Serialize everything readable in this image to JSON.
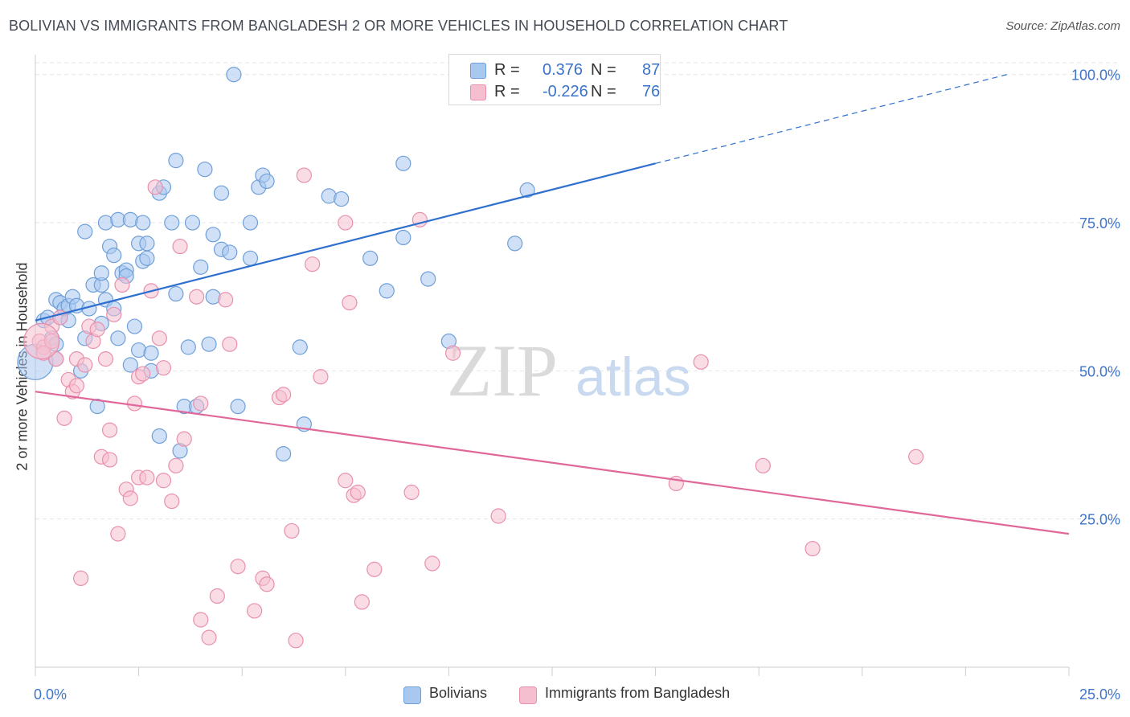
{
  "title": "BOLIVIAN VS IMMIGRANTS FROM BANGLADESH 2 OR MORE VEHICLES IN HOUSEHOLD CORRELATION CHART",
  "source": "Source: ZipAtlas.com",
  "watermark": {
    "zip": "ZIP",
    "atlas": "atlas"
  },
  "colors": {
    "blue_fill": "#a9c8f0",
    "blue_stroke": "#6f9fd8",
    "blue_line": "#2f6fcf",
    "pink_fill": "#f6bfd0",
    "pink_stroke": "#e890ad",
    "pink_line": "#e0679a",
    "axis_text": "#3f74c8",
    "grid": "#e6e6e6"
  },
  "stats": {
    "row1": {
      "r_label": "R =",
      "r_value": "0.376",
      "n_label": "N =",
      "n_value": "87"
    },
    "row2": {
      "r_label": "R =",
      "r_value": "-0.226",
      "n_label": "N =",
      "n_value": "76"
    }
  },
  "legend": {
    "series1": "Bolivians",
    "series2": "Immigrants from Bangladesh"
  },
  "chart_data": {
    "type": "scatter",
    "title": "BOLIVIAN VS IMMIGRANTS FROM BANGLADESH 2 OR MORE VEHICLES IN HOUSEHOLD CORRELATION CHART",
    "xlabel": "",
    "ylabel": "2 or more Vehicles in Household",
    "xlim": [
      0,
      25
    ],
    "ylim": [
      0,
      102
    ],
    "x_tick_labels": [
      "0.0%",
      "25.0%"
    ],
    "y_ticks": [
      25,
      50,
      75,
      100
    ],
    "y_tick_labels": [
      "25.0%",
      "50.0%",
      "75.0%",
      "100.0%"
    ],
    "grid": true,
    "series": [
      {
        "name": "Bolivians",
        "color": "#6f9fd8",
        "trend": {
          "x0": 0,
          "y0": 58.5,
          "x1": 15,
          "y1": 85,
          "dash_to_x": 23.5,
          "dash_to_y": 100
        },
        "points": [
          [
            0.0,
            51.5,
            1
          ],
          [
            0.2,
            58.5,
            0
          ],
          [
            0.3,
            59,
            0
          ],
          [
            0.4,
            55.5,
            0
          ],
          [
            0.5,
            54.5,
            0
          ],
          [
            0.5,
            52,
            0
          ],
          [
            0.5,
            62,
            0
          ],
          [
            0.6,
            61.5,
            0
          ],
          [
            0.6,
            59,
            0
          ],
          [
            0.7,
            60.5,
            0
          ],
          [
            0.8,
            61,
            0
          ],
          [
            0.8,
            58.5,
            0
          ],
          [
            0.9,
            62.5,
            0
          ],
          [
            1.0,
            61,
            0
          ],
          [
            1.1,
            50,
            0
          ],
          [
            1.2,
            55.5,
            0
          ],
          [
            1.2,
            73.5,
            0
          ],
          [
            1.3,
            60.5,
            0
          ],
          [
            1.4,
            64.5,
            0
          ],
          [
            1.5,
            44,
            0
          ],
          [
            1.6,
            64.5,
            0
          ],
          [
            1.6,
            58,
            0
          ],
          [
            1.6,
            66.5,
            0
          ],
          [
            1.7,
            75,
            0
          ],
          [
            1.7,
            62,
            0
          ],
          [
            1.8,
            71,
            0
          ],
          [
            1.9,
            60.5,
            0
          ],
          [
            1.9,
            69.5,
            0
          ],
          [
            2.0,
            55.5,
            0
          ],
          [
            2.0,
            75.5,
            0
          ],
          [
            2.1,
            66.5,
            0
          ],
          [
            2.2,
            67,
            0
          ],
          [
            2.2,
            66,
            0
          ],
          [
            2.3,
            75.5,
            0
          ],
          [
            2.3,
            51,
            0
          ],
          [
            2.4,
            57.5,
            0
          ],
          [
            2.5,
            71.5,
            0
          ],
          [
            2.5,
            53.5,
            0
          ],
          [
            2.6,
            75,
            0
          ],
          [
            2.6,
            68.5,
            0
          ],
          [
            2.7,
            69,
            0
          ],
          [
            2.7,
            71.5,
            0
          ],
          [
            2.8,
            50,
            0
          ],
          [
            2.8,
            53,
            0
          ],
          [
            3.0,
            80,
            0
          ],
          [
            3.0,
            39,
            0
          ],
          [
            3.1,
            81,
            0
          ],
          [
            3.3,
            75,
            0
          ],
          [
            3.4,
            85.5,
            0
          ],
          [
            3.4,
            63,
            0
          ],
          [
            3.5,
            36.5,
            0
          ],
          [
            3.6,
            44,
            0
          ],
          [
            3.7,
            54,
            0
          ],
          [
            3.8,
            75,
            0
          ],
          [
            3.9,
            44,
            0
          ],
          [
            4.0,
            67.5,
            0
          ],
          [
            4.1,
            84,
            0
          ],
          [
            4.2,
            54.5,
            0
          ],
          [
            4.3,
            73,
            0
          ],
          [
            4.3,
            62.5,
            0
          ],
          [
            4.5,
            80,
            0
          ],
          [
            4.5,
            70.5,
            0
          ],
          [
            4.7,
            70,
            0
          ],
          [
            4.8,
            100,
            0
          ],
          [
            4.9,
            44,
            0
          ],
          [
            5.2,
            75,
            0
          ],
          [
            5.2,
            69,
            0
          ],
          [
            5.4,
            81,
            0
          ],
          [
            5.5,
            83,
            0
          ],
          [
            5.6,
            82,
            0
          ],
          [
            6.0,
            36,
            0
          ],
          [
            6.4,
            54,
            0
          ],
          [
            6.5,
            41,
            0
          ],
          [
            7.1,
            79.5,
            0
          ],
          [
            7.4,
            79,
            0
          ],
          [
            8.1,
            69,
            0
          ],
          [
            8.5,
            63.5,
            0
          ],
          [
            8.9,
            72.5,
            0
          ],
          [
            8.9,
            85,
            0
          ],
          [
            9.5,
            65.5,
            0
          ],
          [
            10.0,
            55,
            0
          ],
          [
            11.6,
            71.5,
            0
          ],
          [
            11.9,
            80.5,
            0
          ]
        ]
      },
      {
        "name": "Immigrants from Bangladesh",
        "color": "#e890ad",
        "trend": {
          "x0": 0,
          "y0": 46.5,
          "x1": 25,
          "y1": 22.5
        },
        "points": [
          [
            0.1,
            55,
            0
          ],
          [
            0.2,
            54,
            0
          ],
          [
            0.2,
            53,
            0
          ],
          [
            0.4,
            55,
            0
          ],
          [
            0.4,
            57.5,
            0
          ],
          [
            0.5,
            52,
            0
          ],
          [
            0.6,
            59,
            0
          ],
          [
            0.7,
            42,
            0
          ],
          [
            0.8,
            48.5,
            0
          ],
          [
            0.9,
            46.5,
            0
          ],
          [
            1.0,
            52,
            0
          ],
          [
            1.0,
            47.5,
            0
          ],
          [
            1.1,
            15,
            0
          ],
          [
            1.2,
            51,
            0
          ],
          [
            1.3,
            57.5,
            0
          ],
          [
            1.4,
            55,
            0
          ],
          [
            1.5,
            57,
            0
          ],
          [
            1.6,
            35.5,
            0
          ],
          [
            1.7,
            52,
            0
          ],
          [
            1.8,
            40,
            0
          ],
          [
            1.8,
            35,
            0
          ],
          [
            1.9,
            59.5,
            0
          ],
          [
            2.0,
            22.5,
            0
          ],
          [
            2.1,
            64.5,
            0
          ],
          [
            2.2,
            30,
            0
          ],
          [
            2.3,
            28.5,
            0
          ],
          [
            2.4,
            44.5,
            0
          ],
          [
            2.5,
            49,
            0
          ],
          [
            2.5,
            32,
            0
          ],
          [
            2.6,
            49.5,
            0
          ],
          [
            2.7,
            32,
            0
          ],
          [
            2.8,
            63.5,
            0
          ],
          [
            2.9,
            81,
            0
          ],
          [
            3.0,
            55.5,
            0
          ],
          [
            3.1,
            31.5,
            0
          ],
          [
            3.1,
            50.5,
            0
          ],
          [
            3.3,
            28,
            0
          ],
          [
            3.4,
            34,
            0
          ],
          [
            3.5,
            71,
            0
          ],
          [
            3.6,
            38.5,
            0
          ],
          [
            3.9,
            62.5,
            0
          ],
          [
            4.0,
            44.5,
            0
          ],
          [
            4.0,
            8,
            0
          ],
          [
            4.2,
            5,
            0
          ],
          [
            4.4,
            12,
            0
          ],
          [
            4.6,
            62,
            0
          ],
          [
            4.7,
            54.5,
            0
          ],
          [
            4.9,
            17,
            0
          ],
          [
            5.3,
            9.5,
            0
          ],
          [
            5.5,
            15,
            0
          ],
          [
            5.6,
            14,
            0
          ],
          [
            5.9,
            45.5,
            0
          ],
          [
            6.0,
            46,
            0
          ],
          [
            6.2,
            23,
            0
          ],
          [
            6.3,
            4.5,
            0
          ],
          [
            6.5,
            83,
            0
          ],
          [
            6.7,
            68,
            0
          ],
          [
            6.9,
            49,
            0
          ],
          [
            7.5,
            75,
            0
          ],
          [
            7.5,
            31.5,
            0
          ],
          [
            7.6,
            61.5,
            0
          ],
          [
            7.7,
            29,
            0
          ],
          [
            7.8,
            29.5,
            0
          ],
          [
            7.9,
            11,
            0
          ],
          [
            8.2,
            16.5,
            0
          ],
          [
            9.1,
            29.5,
            0
          ],
          [
            9.3,
            75.5,
            0
          ],
          [
            9.6,
            17.5,
            0
          ],
          [
            10.1,
            53,
            0
          ],
          [
            11.2,
            25.5,
            0
          ],
          [
            15.5,
            31,
            0
          ],
          [
            16.1,
            51.5,
            0
          ],
          [
            17.6,
            34,
            0
          ],
          [
            18.8,
            20,
            0
          ],
          [
            21.3,
            35.5,
            0
          ],
          [
            0.15,
            55,
            1
          ]
        ]
      }
    ]
  }
}
